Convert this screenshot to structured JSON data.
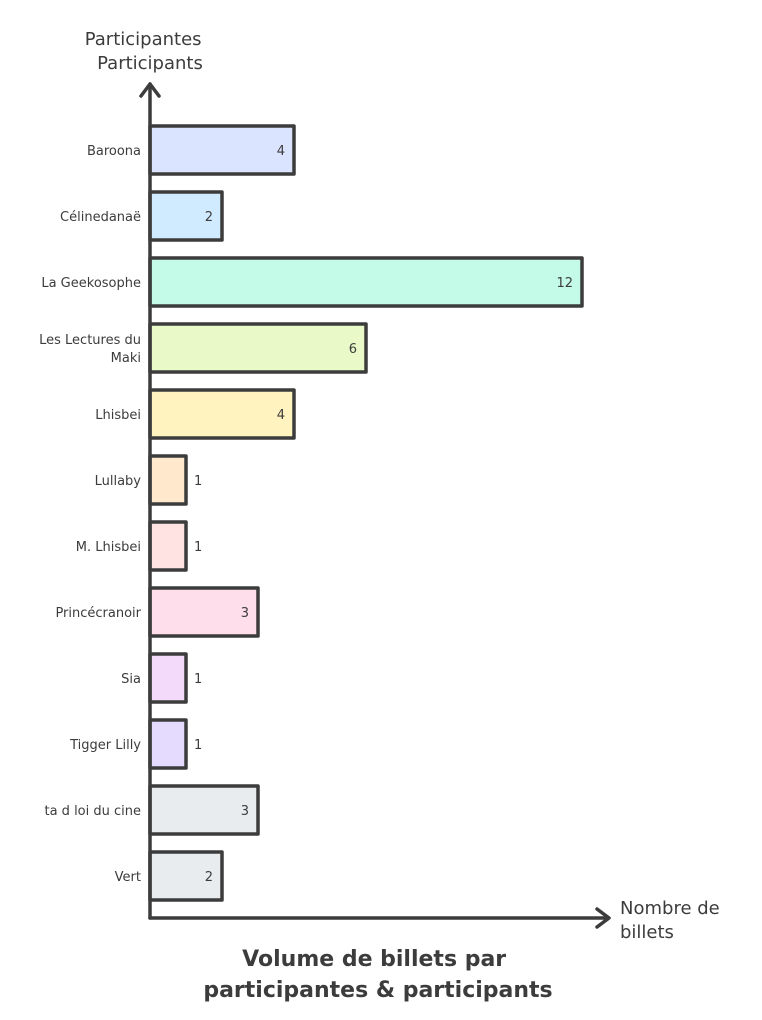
{
  "chart_data": {
    "type": "bar",
    "orientation": "horizontal",
    "title": [
      "Volume de billets par",
      "participantes & participants"
    ],
    "ylabel": [
      "Participantes",
      "Participants"
    ],
    "xlabel": [
      "Nombre de",
      "billets"
    ],
    "categories": [
      [
        "Baroona"
      ],
      [
        "Célinedanaë"
      ],
      [
        "La Geekosophe"
      ],
      [
        "Les Lectures du",
        "Maki"
      ],
      [
        "Lhisbei"
      ],
      [
        "Lullaby"
      ],
      [
        "M. Lhisbei"
      ],
      [
        "Princécranoir"
      ],
      [
        "Sia"
      ],
      [
        "Tigger Lilly"
      ],
      [
        "ta d loi du cine"
      ],
      [
        "Vert"
      ]
    ],
    "values": [
      4,
      2,
      12,
      6,
      4,
      1,
      1,
      3,
      1,
      1,
      3,
      2
    ],
    "colors": [
      "#dbe4ff",
      "#d0ebff",
      "#c3fae8",
      "#e9fac8",
      "#fff3bf",
      "#ffe8cc",
      "#ffe3e3",
      "#ffdeeb",
      "#f3d9fa",
      "#e5dbff",
      "#e9ecef",
      "#e9ecef"
    ],
    "xlim": [
      0,
      12
    ],
    "grid": false,
    "legend": "none"
  }
}
